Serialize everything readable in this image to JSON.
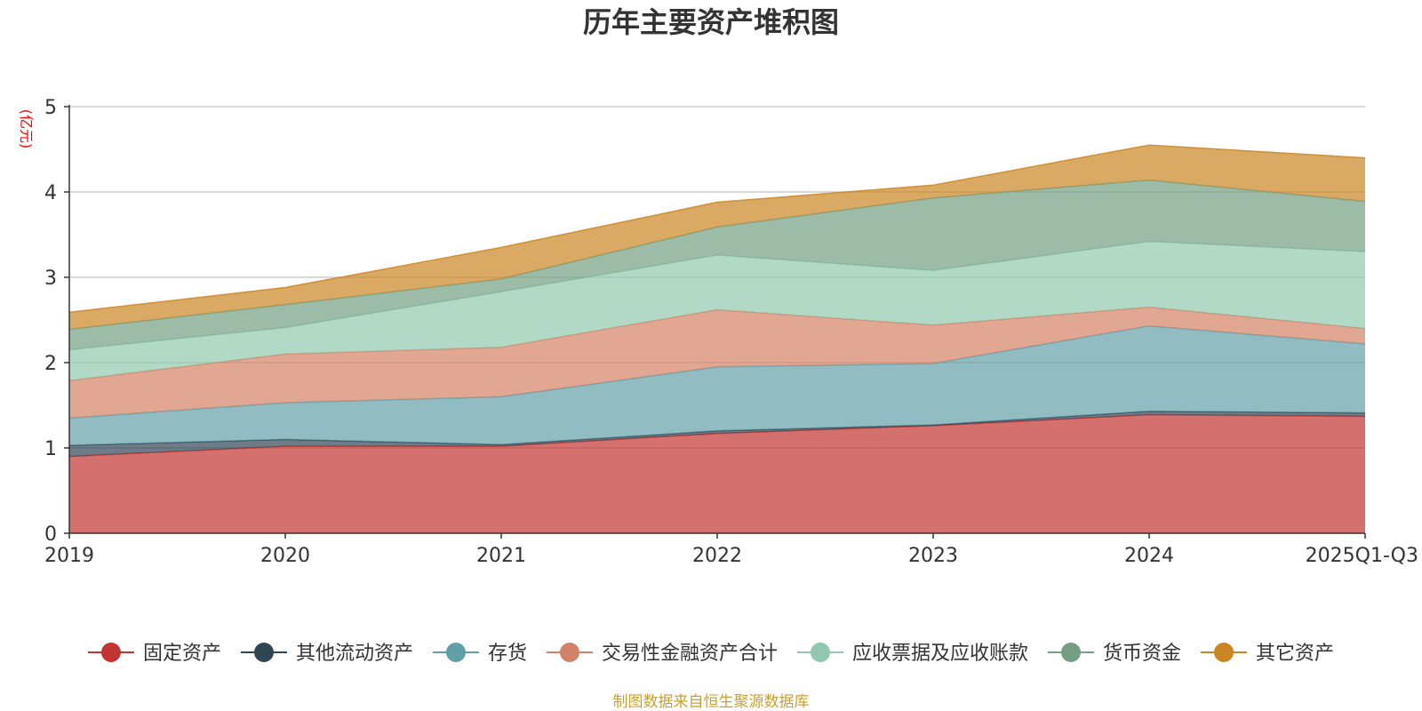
{
  "chart_data": {
    "type": "area",
    "stacked": true,
    "title": "历年主要资产堆积图",
    "ylabel": "(亿元)",
    "xlabel": "",
    "footer": "制图数据来自恒生聚源数据库",
    "ylim": [
      0,
      5
    ],
    "yticks": [
      "0",
      "1",
      "2",
      "3",
      "4",
      "5"
    ],
    "categories": [
      "2019",
      "2020",
      "2021",
      "2022",
      "2023",
      "2024",
      "2025Q1-Q3"
    ],
    "legend_position": "bottom",
    "series": [
      {
        "name": "固定资产",
        "color": "#c23531",
        "values": [
          0.9,
          1.02,
          1.02,
          1.17,
          1.26,
          1.39,
          1.37
        ]
      },
      {
        "name": "其他流动资产",
        "color": "#2f4554",
        "values": [
          0.13,
          0.08,
          0.02,
          0.03,
          0.01,
          0.04,
          0.04
        ]
      },
      {
        "name": "存货",
        "color": "#61a0a8",
        "values": [
          0.32,
          0.43,
          0.56,
          0.75,
          0.72,
          1.0,
          0.81
        ]
      },
      {
        "name": "交易性金融资产合计",
        "color": "#d48265",
        "values": [
          0.44,
          0.57,
          0.58,
          0.67,
          0.45,
          0.22,
          0.18
        ]
      },
      {
        "name": "应收票据及应收账款",
        "color": "#91c7ae",
        "values": [
          0.36,
          0.31,
          0.65,
          0.64,
          0.64,
          0.77,
          0.9
        ]
      },
      {
        "name": "货币资金",
        "color": "#749f83",
        "values": [
          0.24,
          0.27,
          0.15,
          0.33,
          0.85,
          0.72,
          0.59
        ]
      },
      {
        "name": "其它资产",
        "color": "#ca8622",
        "values": [
          0.2,
          0.2,
          0.37,
          0.29,
          0.15,
          0.41,
          0.51
        ]
      }
    ]
  }
}
